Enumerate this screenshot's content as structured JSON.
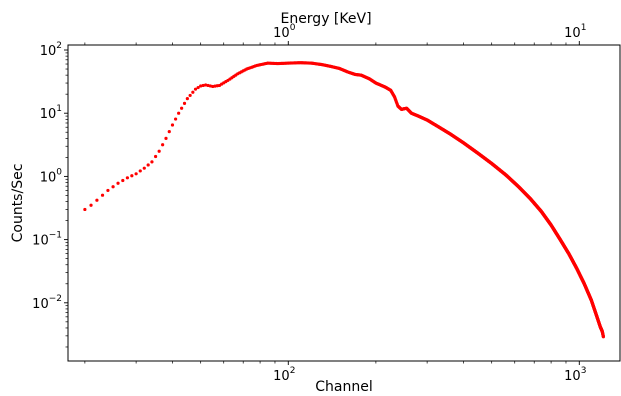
{
  "chart_data": {
    "type": "scatter",
    "title": "",
    "xlabel": "Channel",
    "ylabel": "Counts/Sec",
    "top_xlabel": "Energy [KeV]",
    "xscale": "log",
    "yscale": "log",
    "xlim": [
      17.5,
      1380
    ],
    "ylim": [
      0.0012,
      120
    ],
    "grid": false,
    "legend": "none",
    "marker_color": "#ff0000",
    "x_ticks": [
      {
        "value": 100,
        "base": "10",
        "exp": "2"
      },
      {
        "value": 1000,
        "base": "10",
        "exp": "3"
      }
    ],
    "y_ticks": [
      {
        "value": 100,
        "base": "10",
        "exp": "2"
      },
      {
        "value": 10,
        "base": "10",
        "exp": "1"
      },
      {
        "value": 1,
        "base": "10",
        "exp": "0"
      },
      {
        "value": 0.1,
        "base": "10",
        "exp": "−1"
      },
      {
        "value": 0.01,
        "base": "10",
        "exp": "−2"
      }
    ],
    "top_ticks": [
      {
        "channel": 100,
        "base": "10",
        "exp": "0"
      },
      {
        "channel": 1000,
        "base": "10",
        "exp": "1"
      }
    ],
    "series": [
      {
        "values": [
          [
            20,
            0.3
          ],
          [
            21,
            0.35
          ],
          [
            22,
            0.42
          ],
          [
            24,
            0.6
          ],
          [
            26,
            0.78
          ],
          [
            28,
            0.95
          ],
          [
            30,
            1.1
          ],
          [
            32,
            1.35
          ],
          [
            34,
            1.7
          ],
          [
            36,
            2.5
          ],
          [
            38,
            4.0
          ],
          [
            40,
            6.5
          ],
          [
            42,
            10
          ],
          [
            45,
            17
          ],
          [
            48,
            24
          ],
          [
            50,
            27
          ],
          [
            52,
            28
          ],
          [
            55,
            26.5
          ],
          [
            58,
            27.5
          ],
          [
            62,
            33
          ],
          [
            67,
            42
          ],
          [
            72,
            50
          ],
          [
            78,
            57
          ],
          [
            85,
            62
          ],
          [
            92,
            61
          ],
          [
            100,
            62
          ],
          [
            110,
            63
          ],
          [
            120,
            62
          ],
          [
            130,
            59
          ],
          [
            140,
            55
          ],
          [
            150,
            51
          ],
          [
            160,
            45
          ],
          [
            170,
            41
          ],
          [
            178,
            40
          ],
          [
            190,
            35
          ],
          [
            200,
            30
          ],
          [
            215,
            26
          ],
          [
            225,
            23
          ],
          [
            232,
            18
          ],
          [
            238,
            13
          ],
          [
            245,
            11.5
          ],
          [
            255,
            12
          ],
          [
            265,
            10
          ],
          [
            280,
            9
          ],
          [
            300,
            7.8
          ],
          [
            330,
            6
          ],
          [
            360,
            4.7
          ],
          [
            400,
            3.4
          ],
          [
            450,
            2.3
          ],
          [
            500,
            1.6
          ],
          [
            560,
            1.05
          ],
          [
            620,
            0.68
          ],
          [
            680,
            0.44
          ],
          [
            740,
            0.28
          ],
          [
            800,
            0.17
          ],
          [
            860,
            0.1
          ],
          [
            920,
            0.06
          ],
          [
            980,
            0.035
          ],
          [
            1040,
            0.02
          ],
          [
            1100,
            0.011
          ],
          [
            1150,
            0.006
          ],
          [
            1180,
            0.0042
          ],
          [
            1200,
            0.0035
          ],
          [
            1210,
            0.0029
          ]
        ]
      }
    ]
  }
}
